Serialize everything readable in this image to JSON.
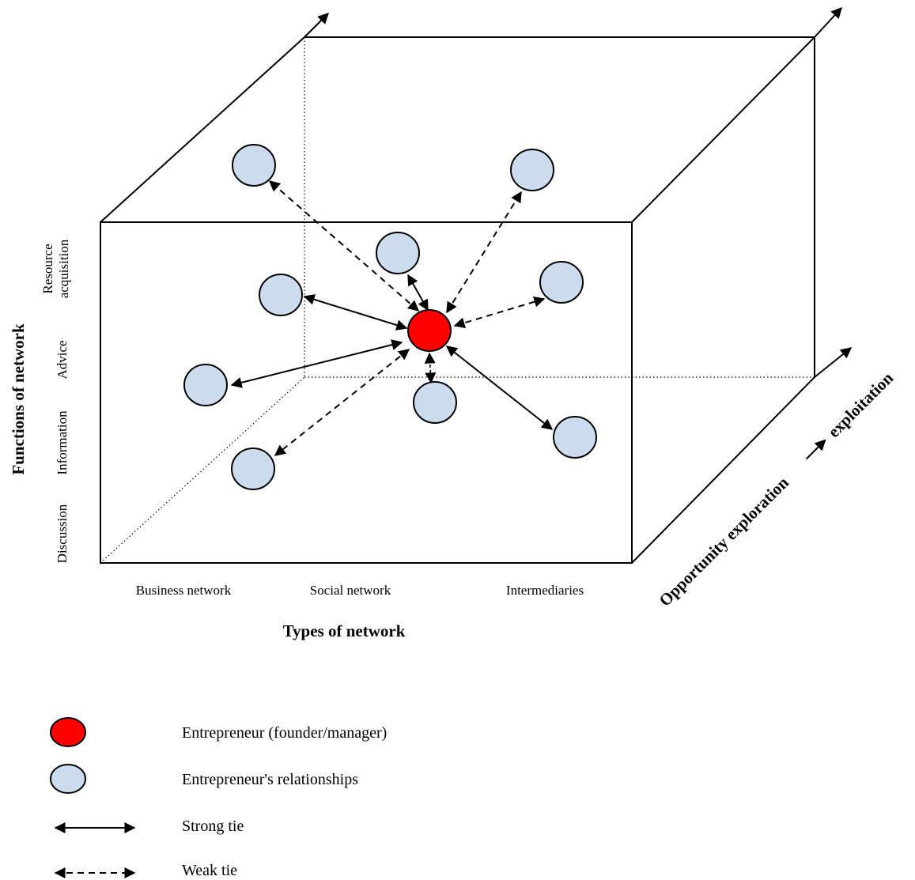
{
  "axes": {
    "x_title": "Types of network",
    "y_title": "Functions of network",
    "z_title_part1": "Opportunity exploration",
    "z_title_part2": "exploitation"
  },
  "x_categories": [
    "Business network",
    "Social network",
    "Intermediaries"
  ],
  "y_categories": {
    "discussion": "Discussion",
    "information": "Information",
    "advice": "Advice",
    "resource_line1": "Resource",
    "resource_line2": "acquisition"
  },
  "legend": {
    "entrepreneur": "Entrepreneur (founder/manager)",
    "relationships": "Entrepreneur's relationships",
    "strong": "Strong tie",
    "weak": "Weak tie"
  },
  "colors": {
    "entrepreneur": "#ff0000",
    "relationship": "#ccdcee",
    "line": "#000000"
  }
}
